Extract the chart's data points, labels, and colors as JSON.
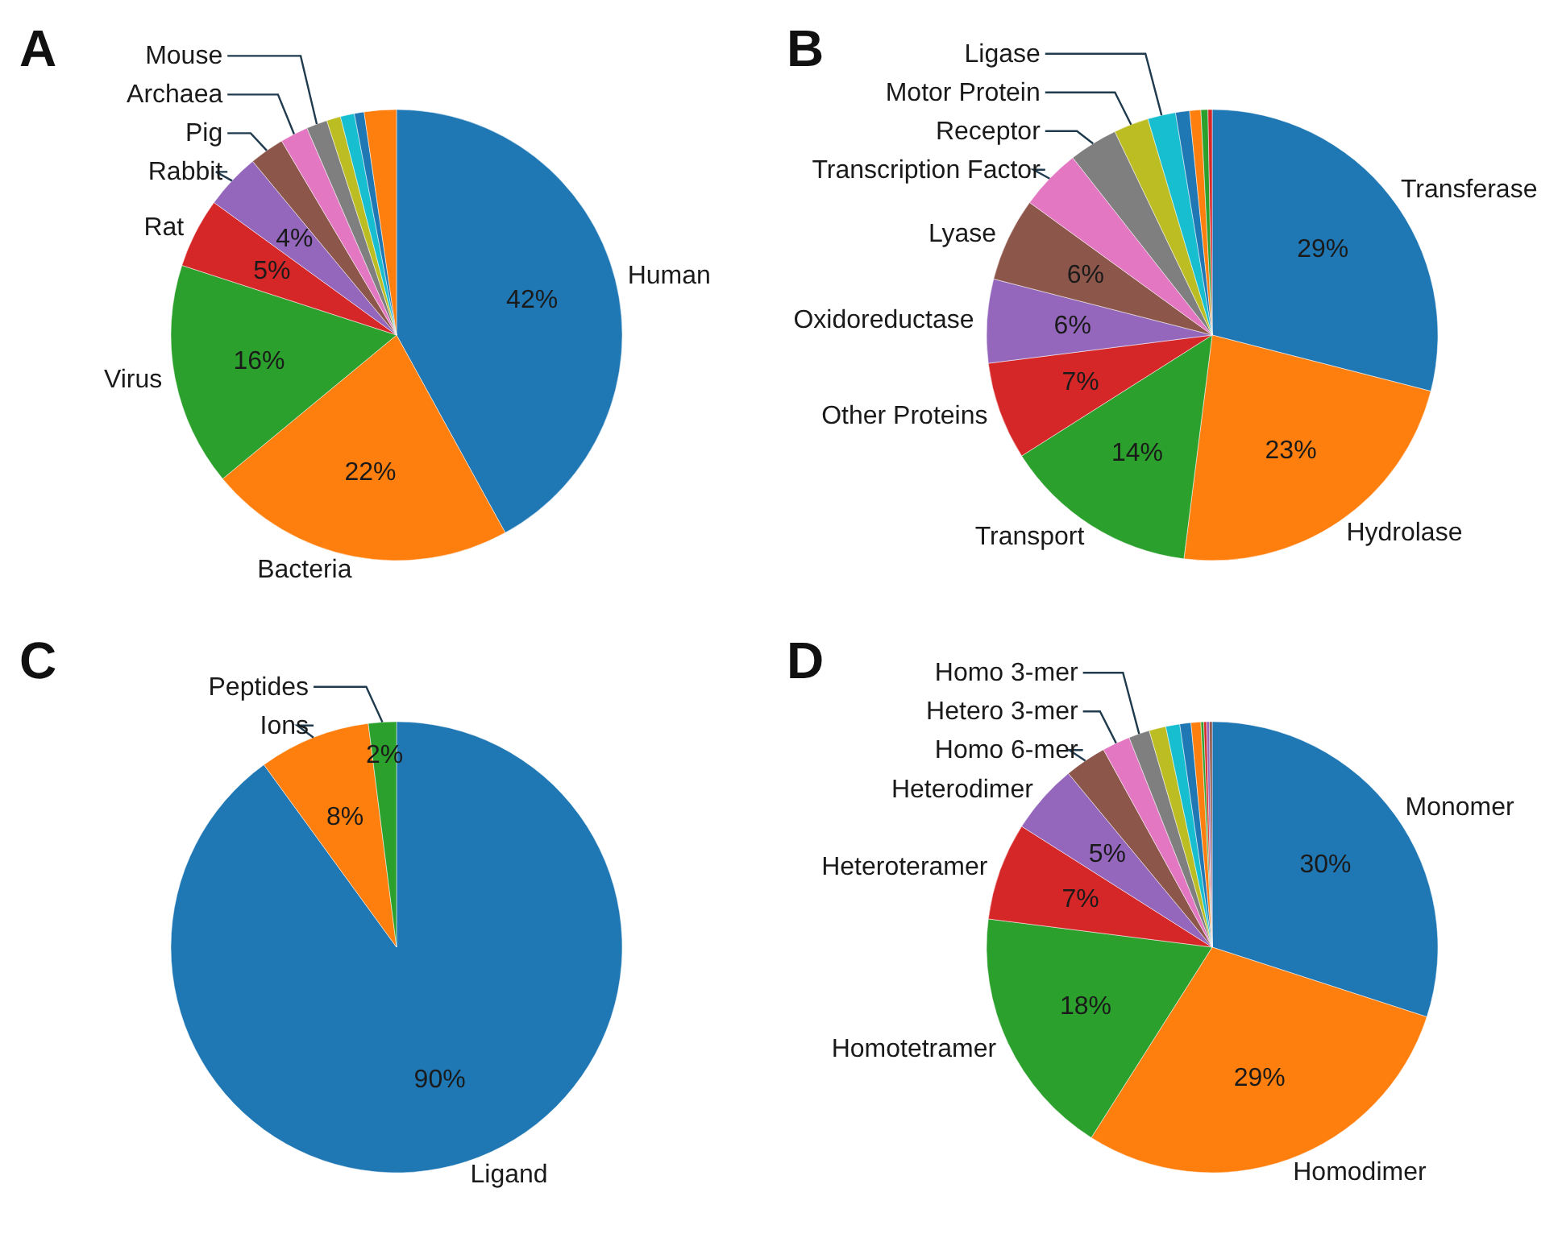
{
  "chart_data": [
    {
      "type": "pie",
      "title": "A",
      "categories": [
        "Human",
        "Bacteria",
        "Virus",
        "Rat",
        "Rabbit",
        "Pig",
        "Archaea",
        "Mouse",
        null,
        null,
        null,
        null
      ],
      "values": [
        42,
        22,
        16,
        5,
        4,
        2.5,
        2,
        1.5,
        1,
        1,
        0.7,
        2.3
      ],
      "value_labels": [
        "42%",
        "22%",
        "16%",
        "5%",
        "4%",
        null,
        null,
        null,
        null,
        null,
        null,
        null
      ],
      "colors": [
        "#1f77b4",
        "#ff7f0e",
        "#2ca02c",
        "#d62728",
        "#9467bd",
        "#8c564b",
        "#e377c2",
        "#7f7f7f",
        "#bcbd22",
        "#17becf",
        "#1f77b4",
        "#ff7f0e"
      ],
      "legend": false
    },
    {
      "type": "pie",
      "title": "B",
      "categories": [
        "Transferase",
        "Hydrolase",
        "Transport",
        "Other Proteins",
        "Oxidoreductase",
        "Lyase",
        "Transcription Factor",
        "Receptor",
        "Motor Protein",
        "Ligase",
        null,
        null,
        null,
        null
      ],
      "values": [
        29,
        23,
        14,
        7,
        6,
        6,
        4.4,
        3.5,
        2.5,
        2,
        1,
        0.8,
        0.5,
        0.3
      ],
      "value_labels": [
        "29%",
        "23%",
        "14%",
        "7%",
        "6%",
        "6%",
        null,
        null,
        null,
        null,
        null,
        null,
        null,
        null
      ],
      "colors": [
        "#1f77b4",
        "#ff7f0e",
        "#2ca02c",
        "#d62728",
        "#9467bd",
        "#8c564b",
        "#e377c2",
        "#7f7f7f",
        "#bcbd22",
        "#17becf",
        "#1f77b4",
        "#ff7f0e",
        "#2ca02c",
        "#d62728"
      ],
      "legend": false
    },
    {
      "type": "pie",
      "title": "C",
      "categories": [
        "Ligand",
        "Ions",
        "Peptides"
      ],
      "values": [
        90,
        8,
        2
      ],
      "value_labels": [
        "90%",
        "8%",
        "2%"
      ],
      "colors": [
        "#1f77b4",
        "#ff7f0e",
        "#2ca02c"
      ],
      "legend": false
    },
    {
      "type": "pie",
      "title": "D",
      "categories": [
        "Monomer",
        "Homodimer",
        "Homotetramer",
        "Heteroteramer",
        "Heterodimer",
        "Homo 6-mer",
        "Hetero 3-mer",
        "Homo 3-mer",
        null,
        null,
        null,
        null,
        null,
        null,
        null,
        null
      ],
      "values": [
        30,
        29,
        18,
        7,
        5,
        3,
        2,
        1.5,
        1.2,
        1,
        0.8,
        0.7,
        0.2,
        0.2,
        0.2,
        0.2
      ],
      "value_labels": [
        "30%",
        "29%",
        "18%",
        "7%",
        "5%",
        null,
        null,
        null,
        null,
        null,
        null,
        null,
        null,
        null,
        null,
        null
      ],
      "colors": [
        "#1f77b4",
        "#ff7f0e",
        "#2ca02c",
        "#d62728",
        "#9467bd",
        "#8c564b",
        "#e377c2",
        "#7f7f7f",
        "#bcbd22",
        "#17becf",
        "#1f77b4",
        "#ff7f0e",
        "#2ca02c",
        "#d62728",
        "#9467bd",
        "#8c564b"
      ],
      "legend": false
    }
  ]
}
